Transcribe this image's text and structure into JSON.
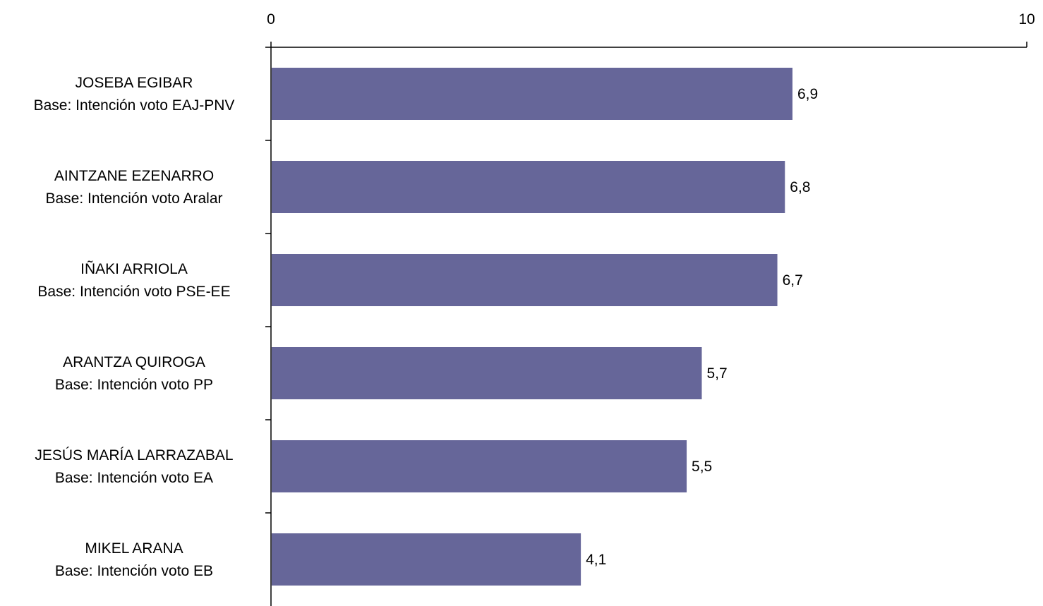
{
  "chart_data": {
    "type": "bar",
    "orientation": "horizontal",
    "categories": [
      {
        "name": "JOSEBA EGIBAR",
        "base": "Base: Intención voto EAJ-PNV"
      },
      {
        "name": "AINTZANE EZENARRO",
        "base": "Base: Intención voto Aralar"
      },
      {
        "name": "IÑAKI ARRIOLA",
        "base": "Base: Intención voto PSE-EE"
      },
      {
        "name": "ARANTZA QUIROGA",
        "base": "Base: Intención voto PP"
      },
      {
        "name": "JESÚS MARÍA LARRAZABAL",
        "base": "Base: Intención voto EA"
      },
      {
        "name": "MIKEL ARANA",
        "base": "Base: Intención voto EB"
      }
    ],
    "values": [
      6.9,
      6.8,
      6.7,
      5.7,
      5.5,
      4.1
    ],
    "value_labels": [
      "6,9",
      "6,8",
      "6,7",
      "5,7",
      "5,5",
      "4,1"
    ],
    "xlim": [
      0,
      10
    ],
    "x_ticks": [
      "0",
      "10"
    ],
    "x_axis_position": "top",
    "bar_color": "#666699",
    "grid": false,
    "legend": "none",
    "title": "",
    "xlabel": "",
    "ylabel": ""
  }
}
